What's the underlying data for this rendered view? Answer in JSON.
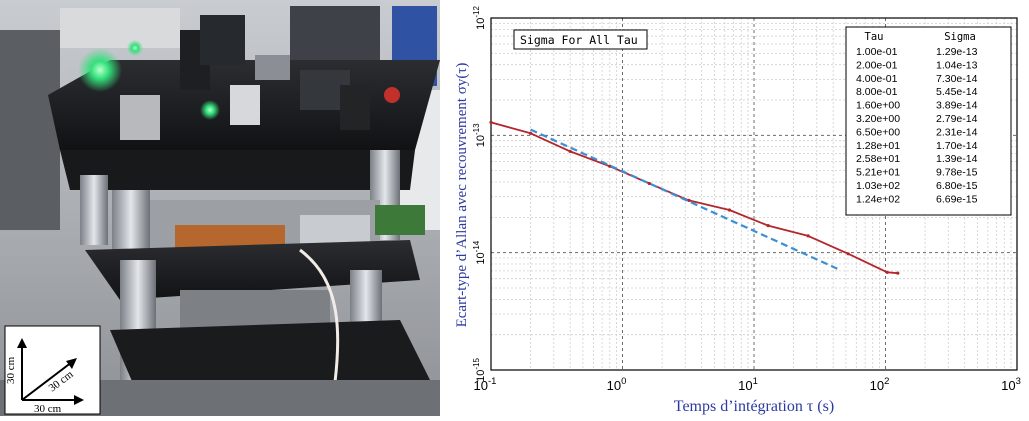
{
  "photo": {
    "scale_labels": [
      "30 cm",
      "30 cm",
      "30 cm"
    ]
  },
  "chart_data": {
    "type": "line",
    "title": "",
    "xlabel": "Temps d’intégration τ (s)",
    "ylabel": "Ecart-type d’Allan avec recouvrement σy(τ)",
    "xscale": "log",
    "yscale": "log",
    "xlim": [
      0.1,
      1000
    ],
    "ylim": [
      1e-15,
      1e-12
    ],
    "x_tick_labels": [
      "10-1",
      "100",
      "101",
      "102",
      "103"
    ],
    "y_tick_labels": [
      "10-15",
      "10-14",
      "10-13",
      "10-12"
    ],
    "grid": true,
    "inset_label": "Sigma For All Tau",
    "table": {
      "headers": [
        "Tau",
        "Sigma"
      ],
      "rows": [
        [
          "1.00e-01",
          "1.29e-13"
        ],
        [
          "2.00e-01",
          "1.04e-13"
        ],
        [
          "4.00e-01",
          "7.30e-14"
        ],
        [
          "8.00e-01",
          "5.45e-14"
        ],
        [
          "1.60e+00",
          "3.89e-14"
        ],
        [
          "3.20e+00",
          "2.79e-14"
        ],
        [
          "6.50e+00",
          "2.31e-14"
        ],
        [
          "1.28e+01",
          "1.70e-14"
        ],
        [
          "2.58e+01",
          "1.39e-14"
        ],
        [
          "5.21e+01",
          "9.78e-15"
        ],
        [
          "1.03e+02",
          "6.80e-15"
        ],
        [
          "1.24e+02",
          "6.69e-15"
        ]
      ]
    },
    "series": [
      {
        "color": "#b3262b",
        "style": "solid",
        "points": [
          [
            0.1,
            1.29e-13
          ],
          [
            0.2,
            1.04e-13
          ],
          [
            0.4,
            7.3e-14
          ],
          [
            0.8,
            5.45e-14
          ],
          [
            1.6,
            3.89e-14
          ],
          [
            3.2,
            2.79e-14
          ],
          [
            6.5,
            2.31e-14
          ],
          [
            12.8,
            1.7e-14
          ],
          [
            25.8,
            1.39e-14
          ],
          [
            52.1,
            9.78e-15
          ],
          [
            103,
            6.8e-15
          ],
          [
            124,
            6.69e-15
          ]
        ]
      },
      {
        "color": "#3a8fd6",
        "style": "dashed",
        "points": [
          [
            0.2,
            1.12e-13
          ],
          [
            43,
            7.3e-15
          ]
        ]
      }
    ]
  }
}
